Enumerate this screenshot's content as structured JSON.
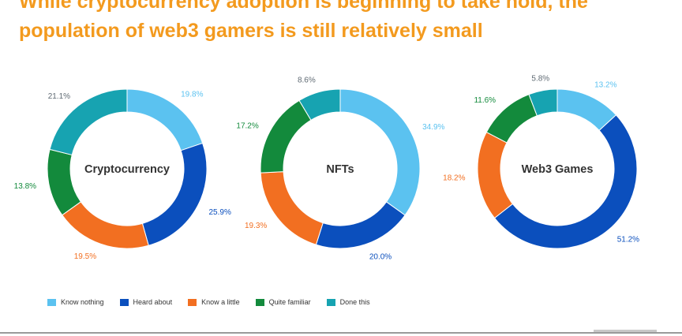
{
  "title": {
    "line1": "While cryptocurrency adoption is beginning to take hold, the",
    "line2": "population of web3 gamers is still relatively small"
  },
  "colors": {
    "title": "#f39a1e",
    "know_nothing": "#5bc2f0",
    "heard_about": "#0b4fbd",
    "know_a_little": "#f26f21",
    "quite_familiar": "#138a3c",
    "done_this": "#17a3b1"
  },
  "legend": [
    {
      "label": "Know nothing",
      "color": "#5bc2f0"
    },
    {
      "label": "Heard about",
      "color": "#0b4fbd"
    },
    {
      "label": "Know a little",
      "color": "#f26f21"
    },
    {
      "label": "Quite familiar",
      "color": "#138a3c"
    },
    {
      "label": "Done this",
      "color": "#17a3b1"
    }
  ],
  "chart_data": [
    {
      "type": "pie",
      "title": "Cryptocurrency",
      "categories": [
        "Know nothing",
        "Heard about",
        "Know a little",
        "Quite familiar",
        "Done this"
      ],
      "values": [
        19.8,
        25.9,
        19.5,
        13.8,
        21.1
      ],
      "labels": [
        "19.8%",
        "25.9%",
        "19.5%",
        "13.8%",
        "21.1%"
      ]
    },
    {
      "type": "pie",
      "title": "NFTs",
      "categories": [
        "Know nothing",
        "Heard about",
        "Know a little",
        "Quite familiar",
        "Done this"
      ],
      "values": [
        34.9,
        20.0,
        19.3,
        17.2,
        8.6
      ],
      "labels": [
        "34.9%",
        "20.0%",
        "19.3%",
        "17.2%",
        "8.6%"
      ]
    },
    {
      "type": "pie",
      "title": "Web3 Games",
      "categories": [
        "Know nothing",
        "Heard about",
        "Know a little",
        "Quite familiar",
        "Done this"
      ],
      "values": [
        13.2,
        51.2,
        18.2,
        11.6,
        5.8
      ],
      "labels": [
        "13.2%",
        "51.2%",
        "18.2%",
        "11.6%",
        "5.8%"
      ]
    }
  ]
}
